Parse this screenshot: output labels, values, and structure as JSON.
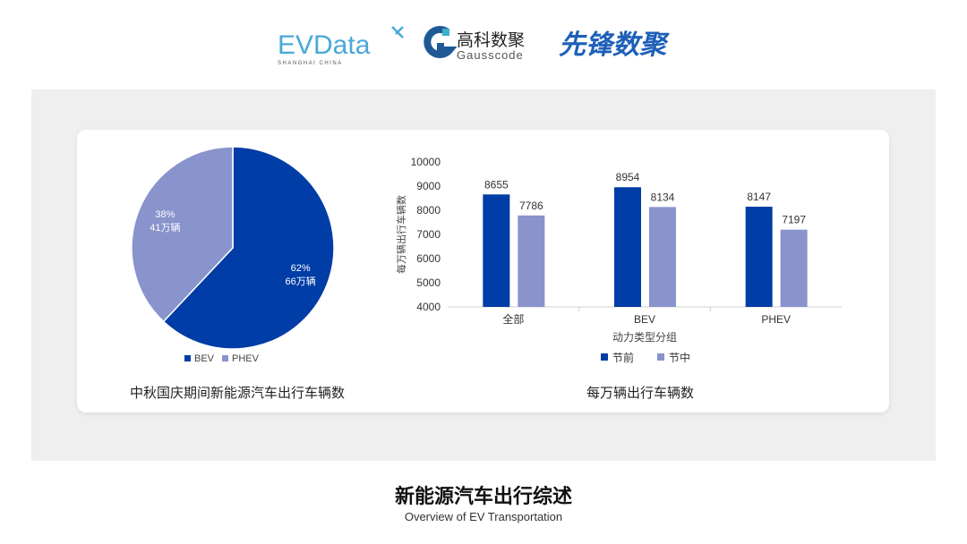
{
  "logos": {
    "evdata": {
      "text": "EVData",
      "sub": "SHANGHAI CHINA"
    },
    "gausscode": {
      "cn": "高科数聚",
      "en": "Gausscode"
    },
    "xianfeng": {
      "cn": "先锋数聚"
    }
  },
  "colors": {
    "dark": "#003DA6",
    "light": "#8993CC"
  },
  "chart_data": [
    {
      "type": "pie",
      "caption": "中秋国庆期间新能源汽车出行车辆数",
      "slices": [
        {
          "name": "BEV",
          "percent": 62,
          "label": "66万辆",
          "pct_label": "62%"
        },
        {
          "name": "PHEV",
          "percent": 38,
          "label": "41万辆",
          "pct_label": "38%"
        }
      ],
      "legend": "bottom"
    },
    {
      "type": "bar",
      "caption": "每万辆出行车辆数",
      "categories": [
        "全部",
        "BEV",
        "PHEV"
      ],
      "series": [
        {
          "name": "节前",
          "values": [
            8655,
            8954,
            8147
          ]
        },
        {
          "name": "节中",
          "values": [
            7786,
            8134,
            7197
          ]
        }
      ],
      "xlabel": "动力类型分组",
      "ylabel": "每万辆出行车辆数",
      "ylim": [
        4000,
        10000
      ],
      "yticks": [
        4000,
        5000,
        6000,
        7000,
        8000,
        9000,
        10000
      ],
      "legend": "bottom",
      "grid": false
    }
  ],
  "footer": {
    "title": "新能源汽车出行综述",
    "subtitle": "Overview of EV Transportation"
  }
}
